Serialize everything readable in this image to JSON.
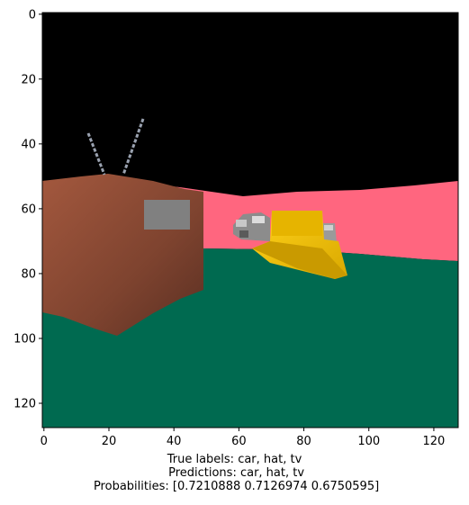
{
  "axes": {
    "x_ticks": [
      "0",
      "20",
      "40",
      "60",
      "80",
      "100",
      "120"
    ],
    "y_ticks": [
      "0",
      "20",
      "40",
      "60",
      "80",
      "100",
      "120"
    ],
    "x_tick_values": [
      0,
      20,
      40,
      60,
      80,
      100,
      120
    ],
    "y_tick_values": [
      0,
      20,
      40,
      60,
      80,
      100,
      120
    ],
    "xlim": [
      -0.5,
      127.5
    ],
    "ylim": [
      127.5,
      -0.5
    ]
  },
  "caption": {
    "line1": "True labels: car, hat, tv",
    "line2": " Predictions: car, hat, tv",
    "line3": " Probabilities: [0.7210888 0.7126974 0.6750595]"
  },
  "scene": {
    "sky_color": "#000000",
    "wall_color": "#ff667f",
    "floor_color": "#006a50",
    "tv_color": "#8a4a35",
    "tv_screen_color": "#808080",
    "antenna_color": "#9aa2b0",
    "hat_color": "#f2c200",
    "car_color": "#9a9a9a"
  }
}
